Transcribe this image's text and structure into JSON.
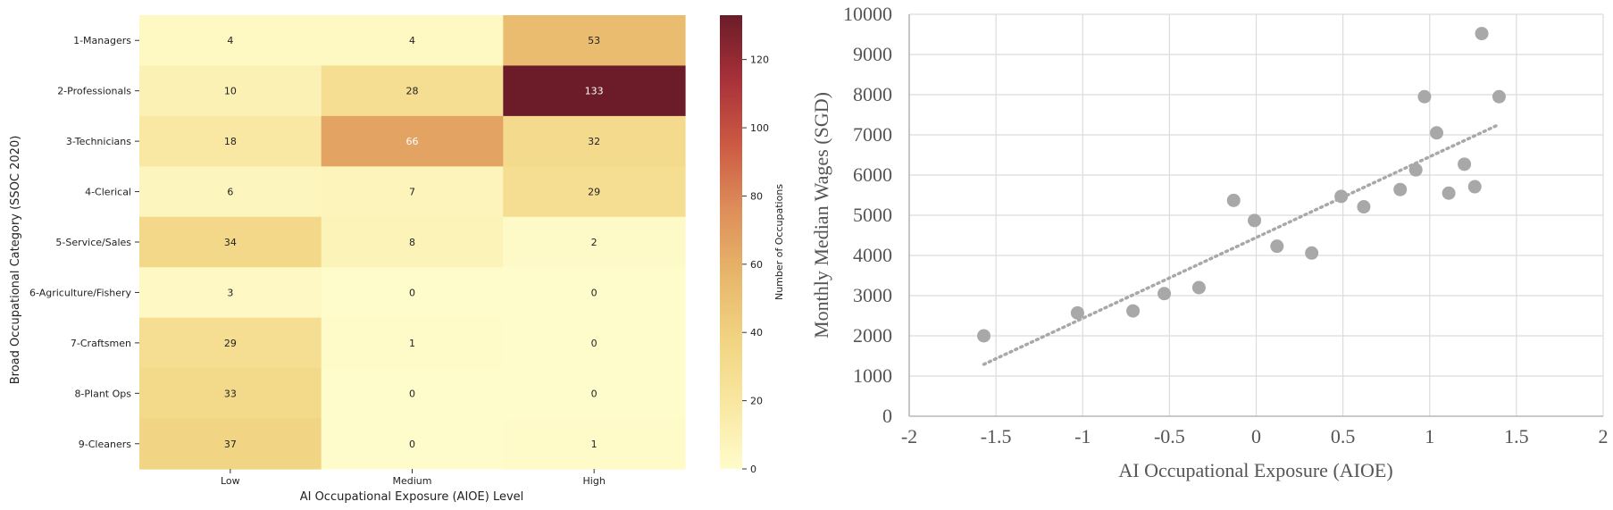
{
  "chart_data": [
    {
      "type": "heatmap",
      "title": "",
      "xlabel": "AI Occupational Exposure (AIOE) Level",
      "ylabel": "Broad Occupational Category (SSOC 2020)",
      "x_categories": [
        "Low",
        "Medium",
        "High"
      ],
      "y_categories": [
        "1-Managers",
        "2-Professionals",
        "3-Technicians",
        "4-Clerical",
        "5-Service/Sales",
        "6-Agriculture/Fishery",
        "7-Craftsmen",
        "8-Plant Ops",
        "9-Cleaners"
      ],
      "values": [
        [
          4,
          4,
          53
        ],
        [
          10,
          28,
          133
        ],
        [
          18,
          66,
          32
        ],
        [
          6,
          7,
          29
        ],
        [
          34,
          8,
          2
        ],
        [
          3,
          0,
          0
        ],
        [
          29,
          1,
          0
        ],
        [
          33,
          0,
          0
        ],
        [
          37,
          0,
          1
        ]
      ],
      "colorbar": {
        "label": "Number of Occupations",
        "range": [
          0,
          133
        ],
        "ticks": [
          0,
          20,
          40,
          60,
          80,
          100,
          120
        ],
        "colormap": "YlOrRd-like",
        "colors": [
          "#fffccb",
          "#f9e7a1",
          "#f1d482",
          "#e7b66a",
          "#de8e5a",
          "#cc5a43",
          "#a8313a",
          "#6b1c28"
        ]
      },
      "grid": false
    },
    {
      "type": "scatter",
      "title": "",
      "xlabel": "AI Occupational Exposure (AIOE)",
      "ylabel": "Monthly Median Wages (SGD)",
      "xlim": [
        -2,
        2
      ],
      "ylim": [
        0,
        10000
      ],
      "x_ticks": [
        -2,
        -1.5,
        -1,
        -0.5,
        0,
        0.5,
        1,
        1.5,
        2
      ],
      "x_tick_labels": [
        "-2",
        "-1.5",
        "-1",
        "-0.5",
        "0",
        "0.5",
        "1",
        "1.5",
        "2"
      ],
      "y_ticks": [
        0,
        1000,
        2000,
        3000,
        4000,
        5000,
        6000,
        7000,
        8000,
        9000,
        10000
      ],
      "y_tick_labels": [
        "0",
        "1000",
        "2000",
        "3000",
        "4000",
        "5000",
        "6000",
        "7000",
        "8000",
        "9000",
        "10000"
      ],
      "points": [
        {
          "x": -1.57,
          "y": 2000
        },
        {
          "x": -1.03,
          "y": 2570
        },
        {
          "x": -0.71,
          "y": 2620
        },
        {
          "x": -0.53,
          "y": 3050
        },
        {
          "x": -0.33,
          "y": 3200
        },
        {
          "x": -0.13,
          "y": 5370
        },
        {
          "x": -0.01,
          "y": 4870
        },
        {
          "x": 0.12,
          "y": 4230
        },
        {
          "x": 0.32,
          "y": 4060
        },
        {
          "x": 0.49,
          "y": 5470
        },
        {
          "x": 0.62,
          "y": 5210
        },
        {
          "x": 0.83,
          "y": 5640
        },
        {
          "x": 0.92,
          "y": 6130
        },
        {
          "x": 0.97,
          "y": 7950
        },
        {
          "x": 1.04,
          "y": 7050
        },
        {
          "x": 1.11,
          "y": 5550
        },
        {
          "x": 1.2,
          "y": 6270
        },
        {
          "x": 1.26,
          "y": 5710
        },
        {
          "x": 1.3,
          "y": 9520
        },
        {
          "x": 1.4,
          "y": 7950
        }
      ],
      "trendline": {
        "style": "dotted",
        "x": [
          -1.57,
          1.4
        ],
        "y": [
          1290,
          7260
        ]
      },
      "point_color": "#a8a8a8",
      "trend_color": "#a8a8a8",
      "grid": true
    }
  ]
}
